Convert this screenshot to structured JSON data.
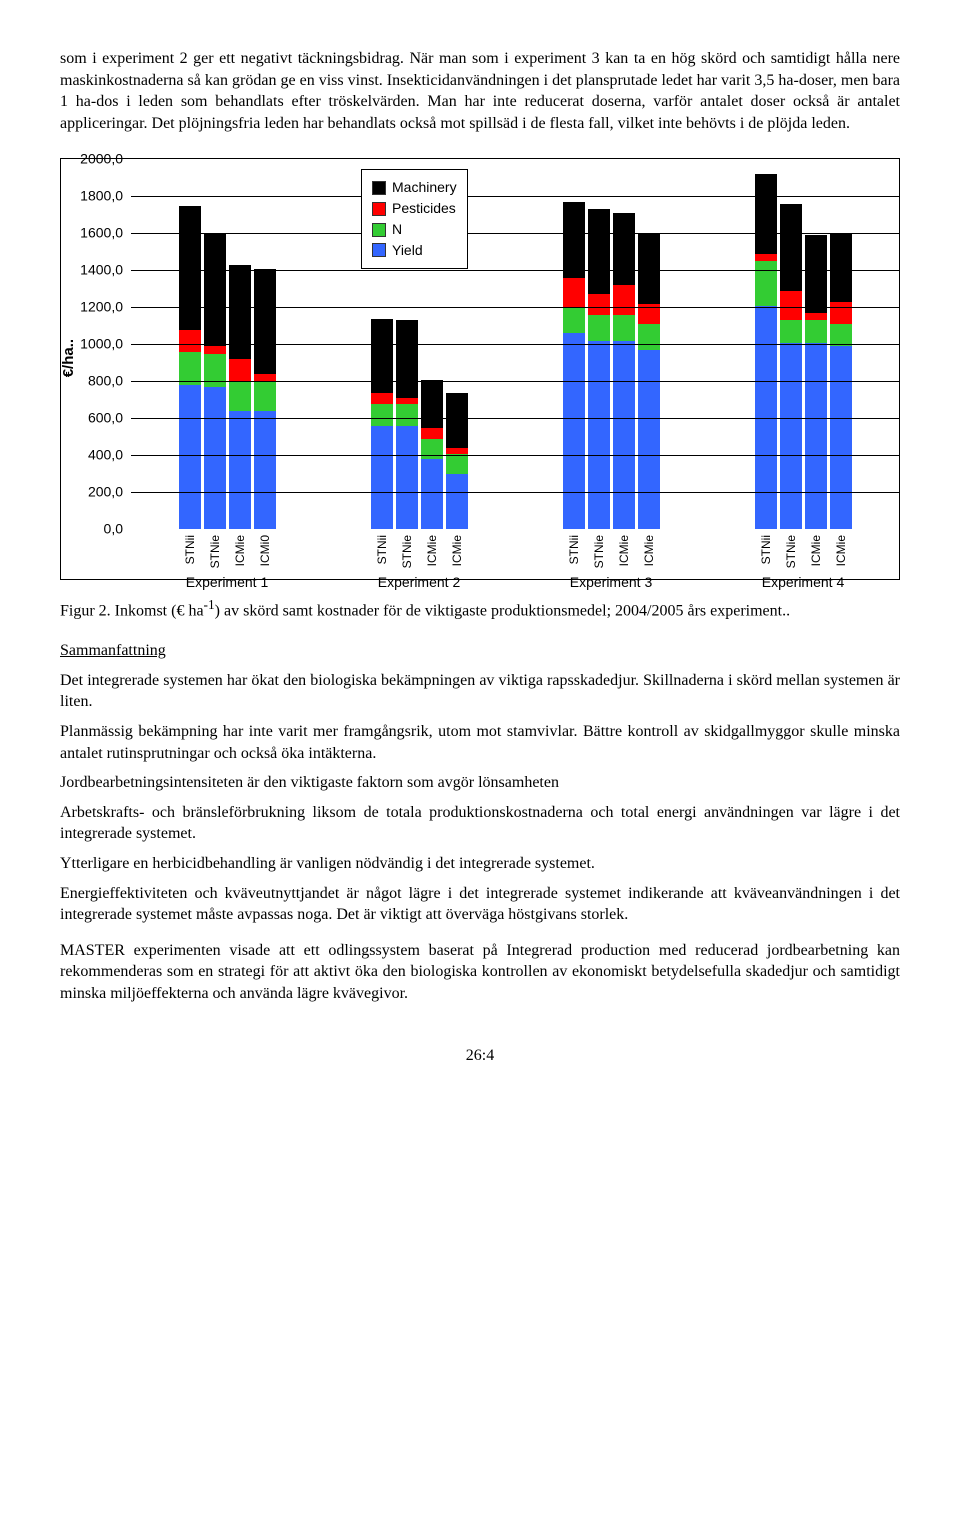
{
  "para1": "som i experiment 2 ger ett negativt täckningsbidrag. När man som i experiment 3 kan ta en hög skörd och samtidigt hålla nere maskinkostnaderna så kan grödan ge en viss vinst. Insekticidanvändningen i det plansprutade ledet har varit 3,5 ha-doser, men bara 1 ha-dos i leden som behandlats efter tröskelvärden. Man har inte reducerat doserna, varför antalet doser också är antalet appliceringar. Det plöjningsfria leden har behandlats också mot spillsäd i de flesta fall, vilket inte behövts i de plöjda leden.",
  "figure_caption_a": "Figur 2. Inkomst (€ ha",
  "figure_caption_sup": "-1",
  "figure_caption_b": ") av skörd samt kostnader för de viktigaste produktionsmedel; 2004/2005 års experiment..",
  "summary_heading": "Sammanfattning",
  "summary_items": [
    " Det integrerade systemen har ökat den biologiska bekämpningen av viktiga rapsskadedjur. Skillnaderna i skörd mellan systemen är liten.",
    "Planmässig bekämpning har inte varit mer framgångsrik, utom mot stamvivlar. Bättre kontroll av skidgallmyggor skulle minska antalet rutinsprutningar och också öka intäkterna.",
    "Jordbearbetningsintensiteten är den viktigaste faktorn som avgör lönsamheten",
    "Arbetskrafts- och bränsleförbrukning liksom de totala produktionskostnaderna och total energi användningen var lägre i det integrerade systemet.",
    "Ytterligare en herbicidbehandling är vanligen nödvändig i det integrerade systemet.",
    "Energieffektiviteten och kväveutnyttjandet är något lägre i det integrerade systemet indikerande att kväveanvändningen i det integrerade systemet måste avpassas noga. Det är viktigt att överväga höstgivans storlek."
  ],
  "para_last": "MASTER experimenten visade att ett odlingssystem baserat på Integrerad production med reducerad jordbearbetning kan rekommenderas som en strategi för att aktivt öka den biologiska kontrollen av ekonomiskt betydelsefulla skadedjur och samtidigt minska miljöeffekterna och använda lägre kvävegivor.",
  "page_num": "26:4",
  "chart": {
    "type": "stacked-bar",
    "ylabel": "€/ha..",
    "ymax": 2000,
    "ytick_step": 200,
    "colors": {
      "Yield": "#3366ff",
      "N": "#33cc33",
      "Pesticides": "#ff0000",
      "Machinery": "#000000"
    },
    "legend_order": [
      "Machinery",
      "Pesticides",
      "N",
      "Yield"
    ],
    "stack_order": [
      "Yield",
      "N",
      "Pesticides",
      "Machinery"
    ],
    "background_color": "#ffffff",
    "border_color": "#000000",
    "groups": [
      {
        "label": "Experiment 1",
        "bars": [
          {
            "label": "STNii",
            "Yield": 780,
            "N": 180,
            "Pesticides": 120,
            "Machinery": 670
          },
          {
            "label": "STNie",
            "Yield": 770,
            "N": 180,
            "Pesticides": 40,
            "Machinery": 610
          },
          {
            "label": "ICMie",
            "Yield": 640,
            "N": 160,
            "Pesticides": 120,
            "Machinery": 510
          },
          {
            "label": "ICMi0",
            "Yield": 640,
            "N": 160,
            "Pesticides": 40,
            "Machinery": 570
          }
        ]
      },
      {
        "label": "Experiment 2",
        "bars": [
          {
            "label": "STNii",
            "Yield": 560,
            "N": 120,
            "Pesticides": 60,
            "Machinery": 400
          },
          {
            "label": "STNie",
            "Yield": 560,
            "N": 120,
            "Pesticides": 30,
            "Machinery": 420
          },
          {
            "label": "ICMie",
            "Yield": 380,
            "N": 110,
            "Pesticides": 60,
            "Machinery": 260
          },
          {
            "label": "ICMie",
            "Yield": 300,
            "N": 110,
            "Pesticides": 30,
            "Machinery": 300
          }
        ]
      },
      {
        "label": "Experiment 3",
        "bars": [
          {
            "label": "STNii",
            "Yield": 1060,
            "N": 140,
            "Pesticides": 160,
            "Machinery": 410
          },
          {
            "label": "STNie",
            "Yield": 1020,
            "N": 140,
            "Pesticides": 110,
            "Machinery": 460
          },
          {
            "label": "ICMie",
            "Yield": 1020,
            "N": 140,
            "Pesticides": 160,
            "Machinery": 390
          },
          {
            "label": "ICMie",
            "Yield": 970,
            "N": 140,
            "Pesticides": 110,
            "Machinery": 380
          }
        ]
      },
      {
        "label": "Experiment 4",
        "bars": [
          {
            "label": "STNii",
            "Yield": 1210,
            "N": 240,
            "Pesticides": 40,
            "Machinery": 430
          },
          {
            "label": "STNie",
            "Yield": 1010,
            "N": 120,
            "Pesticides": 160,
            "Machinery": 470
          },
          {
            "label": "ICMie",
            "Yield": 1010,
            "N": 120,
            "Pesticides": 40,
            "Machinery": 420
          },
          {
            "label": "ICMie",
            "Yield": 990,
            "N": 120,
            "Pesticides": 120,
            "Machinery": 370
          }
        ]
      }
    ]
  }
}
